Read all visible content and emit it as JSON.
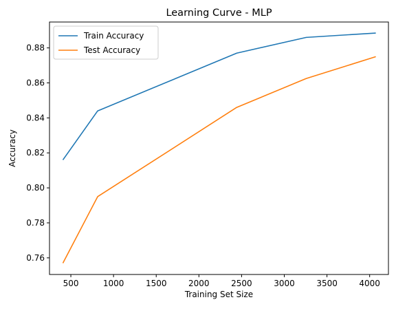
{
  "chart_data": {
    "type": "line",
    "title": "Learning Curve - MLP",
    "xlabel": "Training Set Size",
    "ylabel": "Accuracy",
    "xlim": [
      250,
      4220
    ],
    "ylim": [
      0.7505,
      0.8948
    ],
    "xticks": [
      500,
      1000,
      1500,
      2000,
      2500,
      3000,
      3500,
      4000
    ],
    "yticks": [
      0.76,
      0.78,
      0.8,
      0.82,
      0.84,
      0.86,
      0.88
    ],
    "xtick_labels": [
      "500",
      "1000",
      "1500",
      "2000",
      "2500",
      "3000",
      "3500",
      "4000"
    ],
    "ytick_labels": [
      "0.76",
      "0.78",
      "0.80",
      "0.82",
      "0.84",
      "0.86",
      "0.88"
    ],
    "grid": false,
    "legend_position": "top-left",
    "x": [
      407,
      814,
      2443,
      3257,
      4072
    ],
    "series": [
      {
        "name": "Train Accuracy",
        "color": "#1f77b4",
        "values": [
          0.816,
          0.844,
          0.877,
          0.886,
          0.8885
        ]
      },
      {
        "name": "Test Accuracy",
        "color": "#ff7f0e",
        "values": [
          0.757,
          0.795,
          0.846,
          0.8625,
          0.875
        ]
      }
    ]
  }
}
